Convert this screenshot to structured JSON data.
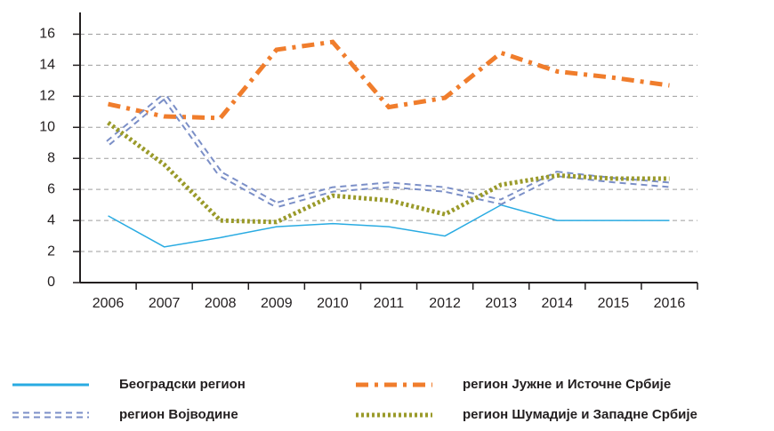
{
  "chart_data": {
    "type": "line",
    "categories": [
      "2006",
      "2007",
      "2008",
      "2009",
      "2010",
      "2011",
      "2012",
      "2013",
      "2014",
      "2015",
      "2016"
    ],
    "ylim": [
      0,
      17.4
    ],
    "yticks": [
      0,
      2,
      4,
      6,
      8,
      10,
      12,
      14,
      16
    ],
    "grid": true,
    "legend": "bottom",
    "series": [
      {
        "name": "Београдски регион",
        "color": "#29abe2",
        "style": "solid",
        "values": [
          4.3,
          2.3,
          2.9,
          3.6,
          3.8,
          3.6,
          3.0,
          5.0,
          4.0,
          4.0,
          4.0
        ]
      },
      {
        "name": "регион Јужне и Источне Србије",
        "color": "#f07d2c",
        "style": "dashdot",
        "values": [
          11.5,
          10.7,
          10.6,
          15.0,
          15.5,
          11.3,
          11.9,
          14.8,
          13.6,
          13.2,
          12.7
        ]
      },
      {
        "name": "регион Војводине",
        "color": "#7b8fc7",
        "style": "squares",
        "values": [
          9.0,
          12.0,
          7.0,
          5.0,
          6.0,
          6.3,
          6.0,
          5.2,
          7.0,
          6.6,
          6.3
        ]
      },
      {
        "name": "регион Шумадије и Западне Србије",
        "color": "#9a9a2a",
        "style": "dotted",
        "values": [
          10.3,
          7.6,
          4.0,
          3.9,
          5.6,
          5.3,
          4.4,
          6.3,
          6.9,
          6.7,
          6.7
        ]
      }
    ]
  }
}
